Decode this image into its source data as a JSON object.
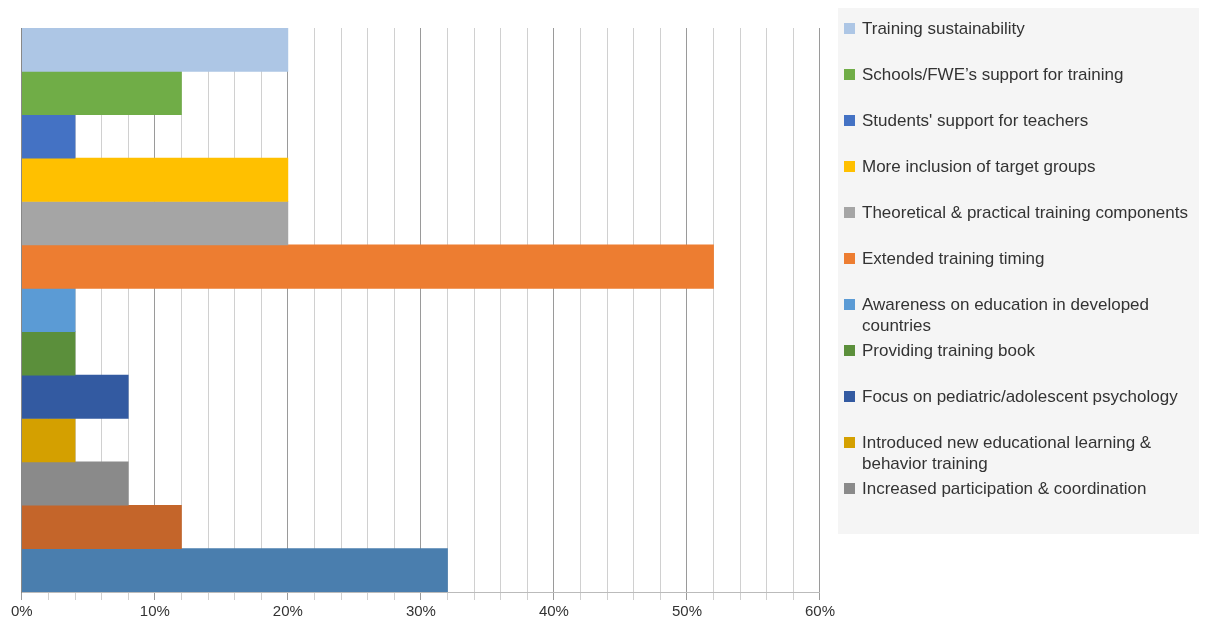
{
  "chart_data": {
    "type": "bar",
    "orientation": "horizontal",
    "grid": "x",
    "legend": "right",
    "categories": [
      null,
      null,
      null,
      null,
      null,
      null,
      null,
      null,
      null,
      null,
      null,
      null,
      null
    ],
    "xlim": [
      0,
      60
    ],
    "xticks": [
      {
        "value": 0,
        "label": "0%"
      },
      {
        "value": 2,
        "label": null
      },
      {
        "value": 4,
        "label": null
      },
      {
        "value": 6,
        "label": null
      },
      {
        "value": 8,
        "label": null
      },
      {
        "value": 10,
        "label": "10%"
      },
      {
        "value": 12,
        "label": null
      },
      {
        "value": 14,
        "label": null
      },
      {
        "value": 16,
        "label": null
      },
      {
        "value": 18,
        "label": null
      },
      {
        "value": 20,
        "label": "20%"
      },
      {
        "value": 22,
        "label": null
      },
      {
        "value": 24,
        "label": null
      },
      {
        "value": 26,
        "label": null
      },
      {
        "value": 28,
        "label": null
      },
      {
        "value": 30,
        "label": "30%"
      },
      {
        "value": 32,
        "label": null
      },
      {
        "value": 34,
        "label": null
      },
      {
        "value": 36,
        "label": null
      },
      {
        "value": 38,
        "label": null
      },
      {
        "value": 40,
        "label": "40%"
      },
      {
        "value": 42,
        "label": null
      },
      {
        "value": 44,
        "label": null
      },
      {
        "value": 46,
        "label": null
      },
      {
        "value": 48,
        "label": null
      },
      {
        "value": 50,
        "label": "50%"
      },
      {
        "value": 52,
        "label": null
      },
      {
        "value": 54,
        "label": null
      },
      {
        "value": 56,
        "label": null
      },
      {
        "value": 58,
        "label": null
      },
      {
        "value": 60,
        "label": "60%"
      }
    ],
    "series": [
      {
        "name": "Training sustainability",
        "color": "#adc6e5",
        "values": [
          20,
          null,
          null,
          null,
          null,
          null,
          null,
          null,
          null,
          null,
          null,
          null,
          null
        ]
      },
      {
        "name": "Schools/FWE’s support for training",
        "color": "#70ad47",
        "values": [
          null,
          12,
          null,
          null,
          null,
          null,
          null,
          null,
          null,
          null,
          null,
          null,
          null
        ]
      },
      {
        "name": "Students' support for teachers",
        "color": "#4472c4",
        "values": [
          null,
          null,
          4,
          null,
          null,
          null,
          null,
          null,
          null,
          null,
          null,
          null,
          null
        ]
      },
      {
        "name": "More inclusion of target groups",
        "color": "#ffc000",
        "values": [
          null,
          null,
          null,
          20,
          null,
          null,
          null,
          null,
          null,
          null,
          null,
          null,
          null
        ]
      },
      {
        "name": "Theoretical & practical training components",
        "color": "#a5a5a5",
        "values": [
          null,
          null,
          null,
          null,
          20,
          null,
          null,
          null,
          null,
          null,
          null,
          null,
          null
        ]
      },
      {
        "name": "Extended training timing",
        "color": "#ed7d31",
        "values": [
          null,
          null,
          null,
          null,
          null,
          52,
          null,
          null,
          null,
          null,
          null,
          null,
          null
        ]
      },
      {
        "name": "Awareness on education in developed countries",
        "color": "#5b9bd5",
        "values": [
          null,
          null,
          null,
          null,
          null,
          null,
          4,
          null,
          null,
          null,
          null,
          null,
          null
        ]
      },
      {
        "name": "Providing training book",
        "color": "#5b8f3b",
        "values": [
          null,
          null,
          null,
          null,
          null,
          null,
          null,
          4,
          null,
          null,
          null,
          null,
          null
        ]
      },
      {
        "name": "Focus on pediatric/adolescent psychology",
        "color": "#335aa1",
        "values": [
          null,
          null,
          null,
          null,
          null,
          null,
          null,
          null,
          8,
          null,
          null,
          null,
          null
        ]
      },
      {
        "name": "Introduced new educational learning & behavior training",
        "color": "#d4a000",
        "values": [
          null,
          null,
          null,
          null,
          null,
          null,
          null,
          null,
          null,
          4,
          null,
          null,
          null
        ]
      },
      {
        "name": "Increased participation & coordination",
        "color": "#8a8a8a",
        "values": [
          null,
          null,
          null,
          null,
          null,
          null,
          null,
          null,
          null,
          null,
          8,
          null,
          null
        ]
      },
      {
        "color": "#c4652a",
        "values": [
          null,
          null,
          null,
          null,
          null,
          null,
          null,
          null,
          null,
          null,
          null,
          12,
          null
        ]
      },
      {
        "color": "#4a7eae",
        "values": [
          null,
          null,
          null,
          null,
          null,
          null,
          null,
          null,
          null,
          null,
          null,
          null,
          32
        ]
      }
    ]
  }
}
